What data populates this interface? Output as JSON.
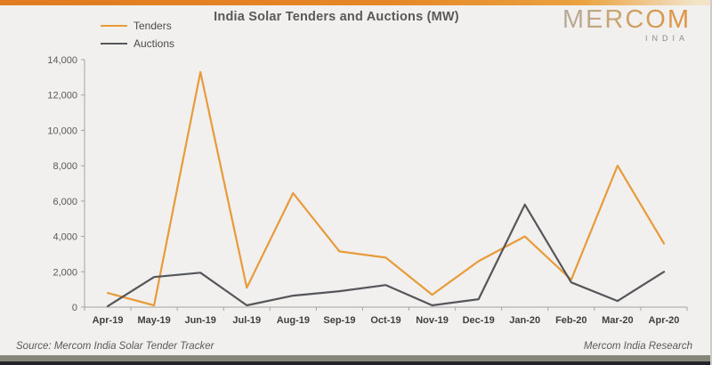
{
  "header": {
    "title": "India Solar Tenders and Auctions (MW)",
    "logo": {
      "brand": "MERCOM",
      "sub": "INDIA"
    }
  },
  "chart_data": {
    "type": "line",
    "title": "India Solar Tenders and Auctions (MW)",
    "categories": [
      "Apr-19",
      "May-19",
      "Jun-19",
      "Jul-19",
      "Aug-19",
      "Sep-19",
      "Oct-19",
      "Nov-19",
      "Dec-19",
      "Jan-20",
      "Feb-20",
      "Mar-20",
      "Apr-20"
    ],
    "series": [
      {
        "name": "Tenders",
        "color": "#E79B3A",
        "values": [
          800,
          100,
          13300,
          1100,
          6450,
          3150,
          2800,
          700,
          2600,
          4000,
          1550,
          8000,
          3600
        ]
      },
      {
        "name": "Auctions",
        "color": "#55565A",
        "values": [
          50,
          1700,
          1950,
          100,
          650,
          900,
          1250,
          100,
          450,
          5800,
          1400,
          350,
          2000
        ]
      }
    ],
    "xlabel": "",
    "ylabel": "",
    "ylim": [
      0,
      14000
    ],
    "y_ticks": [
      {
        "value": 0,
        "label": "0"
      },
      {
        "value": 2000,
        "label": "2,000"
      },
      {
        "value": 4000,
        "label": "4,000"
      },
      {
        "value": 6000,
        "label": "6,000"
      },
      {
        "value": 8000,
        "label": "8,000"
      },
      {
        "value": 10000,
        "label": "10,000"
      },
      {
        "value": 12000,
        "label": "12,000"
      },
      {
        "value": 14000,
        "label": "14,000"
      }
    ],
    "grid": false,
    "legend_position": "top-left"
  },
  "footer": {
    "source": "Source: Mercom India Solar Tender Tracker",
    "research": "Mercom India Research"
  },
  "colors": {
    "top_bar": "#E58727",
    "background": "#F2F0EE",
    "axis": "#a6a49f",
    "title_text": "#595959",
    "bottom_bar": "#87867B",
    "bottom_edge": "#23232C"
  }
}
